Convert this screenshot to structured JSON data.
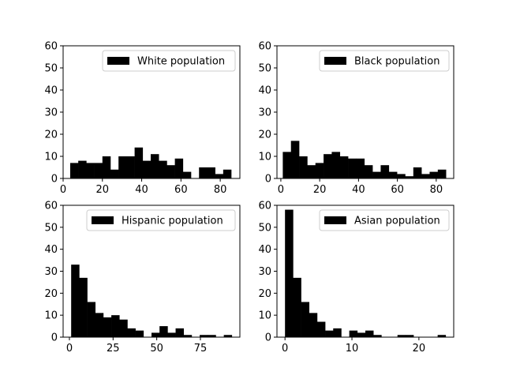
{
  "chart_data": [
    {
      "type": "bar",
      "subtype": "histogram",
      "series": [
        {
          "name": "White population",
          "color": "#000000"
        }
      ],
      "bin_edges": [
        3.6,
        7.7,
        11.8,
        15.9,
        20.0,
        24.1,
        28.2,
        32.3,
        36.4,
        40.5,
        44.6,
        48.7,
        52.8,
        56.9,
        61.0,
        65.1,
        69.2,
        73.3,
        77.4,
        81.5,
        85.6
      ],
      "counts": [
        7,
        8,
        7,
        7,
        10,
        4,
        10,
        10,
        14,
        8,
        11,
        8,
        6,
        9,
        3,
        0,
        5,
        5,
        2,
        4
      ],
      "xlim": [
        0,
        90
      ],
      "ylim": [
        0,
        60
      ],
      "xticks": [
        0,
        20,
        40,
        60,
        80
      ],
      "yticks": [
        0,
        10,
        20,
        30,
        40,
        50,
        60
      ],
      "legend_position": "upper right",
      "grid": false
    },
    {
      "type": "bar",
      "subtype": "histogram",
      "series": [
        {
          "name": "Black population",
          "color": "#000000"
        }
      ],
      "bin_edges": [
        1.0,
        5.2,
        9.4,
        13.6,
        17.8,
        22.0,
        26.2,
        30.4,
        34.6,
        38.8,
        43.0,
        47.2,
        51.4,
        55.6,
        59.8,
        64.0,
        68.2,
        72.4,
        76.6,
        80.8,
        85.0
      ],
      "counts": [
        12,
        17,
        10,
        6,
        7,
        11,
        12,
        10,
        9,
        9,
        6,
        3,
        6,
        3,
        2,
        1,
        5,
        2,
        3,
        4
      ],
      "xlim": [
        -2,
        89
      ],
      "ylim": [
        0,
        60
      ],
      "xticks": [
        0,
        20,
        40,
        60,
        80
      ],
      "yticks": [
        0,
        10,
        20,
        30,
        40,
        50,
        60
      ],
      "legend_position": "upper right",
      "grid": false
    },
    {
      "type": "bar",
      "subtype": "histogram",
      "series": [
        {
          "name": "Hispanic population",
          "color": "#000000"
        }
      ],
      "bin_edges": [
        1.0,
        5.6,
        10.2,
        14.8,
        19.4,
        24.0,
        28.6,
        33.2,
        37.8,
        42.4,
        47.0,
        51.6,
        56.2,
        60.8,
        65.4,
        70.0,
        74.6,
        79.2,
        83.8,
        88.4,
        93.0
      ],
      "counts": [
        33,
        27,
        16,
        11,
        9,
        10,
        8,
        4,
        3,
        0,
        2,
        5,
        2,
        4,
        1,
        0,
        1,
        1,
        0,
        1
      ],
      "xlim": [
        -3.6,
        97.6
      ],
      "ylim": [
        0,
        60
      ],
      "xticks": [
        0,
        25,
        50,
        75
      ],
      "yticks": [
        0,
        10,
        20,
        30,
        40,
        50,
        60
      ],
      "legend_position": "upper right",
      "grid": false
    },
    {
      "type": "bar",
      "subtype": "histogram",
      "series": [
        {
          "name": "Asian population",
          "color": "#000000"
        }
      ],
      "bin_edges": [
        0.0,
        1.2,
        2.4,
        3.6,
        4.8,
        6.0,
        7.2,
        8.4,
        9.6,
        10.8,
        12.0,
        13.2,
        14.4,
        15.6,
        16.8,
        18.0,
        19.2,
        20.4,
        21.6,
        22.8,
        24.0
      ],
      "counts": [
        58,
        27,
        16,
        11,
        7,
        3,
        4,
        0,
        3,
        2,
        3,
        1,
        0,
        0,
        1,
        1,
        0,
        0,
        0,
        1
      ],
      "xlim": [
        -1.2,
        25.2
      ],
      "ylim": [
        0,
        60
      ],
      "xticks": [
        0,
        10,
        20
      ],
      "yticks": [
        0,
        10,
        20,
        30,
        40,
        50,
        60
      ],
      "legend_position": "upper right",
      "grid": false
    }
  ]
}
